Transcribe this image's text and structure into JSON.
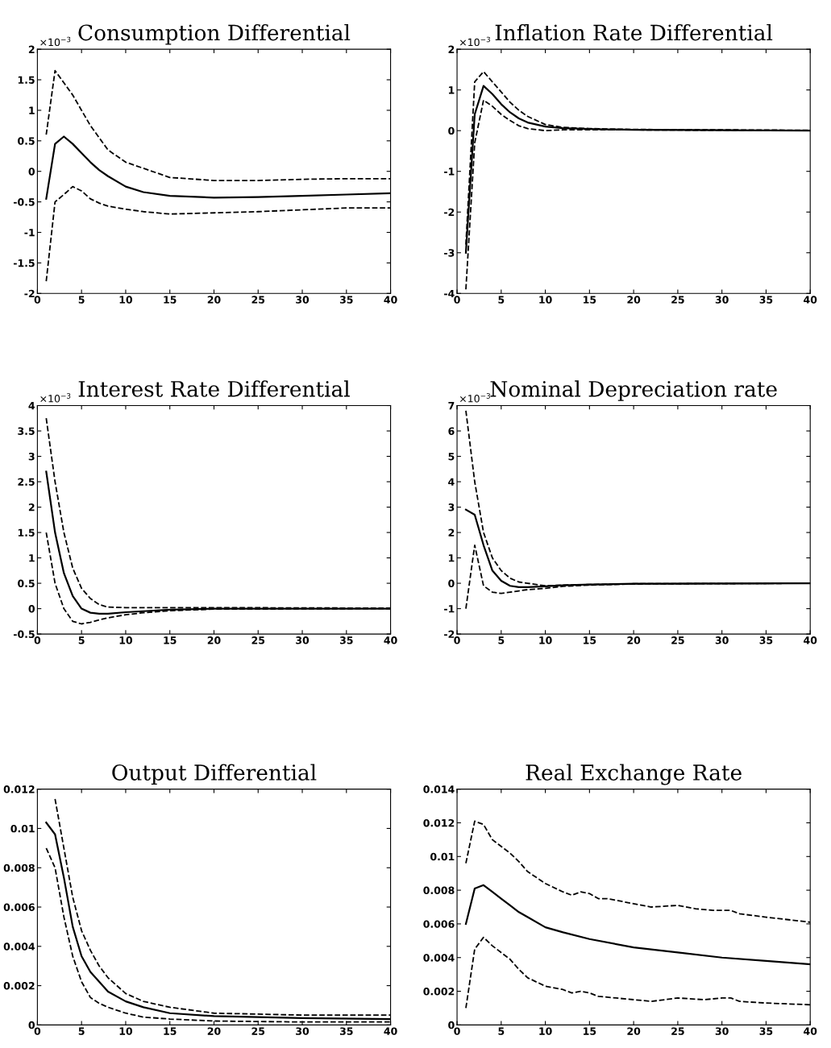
{
  "chart_data": [
    {
      "type": "line",
      "title": "Consumption Differential",
      "annotations": [
        "×10$^{−3}$"
      ],
      "xlim": [
        0,
        40
      ],
      "xticks": [
        0,
        5,
        10,
        15,
        20,
        25,
        30,
        35,
        40
      ],
      "ylim": [
        -2,
        2
      ],
      "yticks": [
        -2,
        -1.5,
        -1,
        -0.5,
        0,
        0.5,
        1,
        1.5,
        2
      ],
      "series": [
        {
          "x": [
            1,
            2,
            3,
            4,
            5,
            6,
            7,
            8,
            10,
            12,
            15,
            20,
            25,
            30,
            35,
            40
          ],
          "values": [
            -0.45,
            0.45,
            0.57,
            0.45,
            0.3,
            0.15,
            0.02,
            -0.08,
            -0.25,
            -0.34,
            -0.4,
            -0.43,
            -0.42,
            -0.4,
            -0.38,
            -0.36
          ],
          "color": "#000000",
          "line_style": "solid"
        },
        {
          "x": [
            1,
            2,
            3,
            4,
            5,
            6,
            7,
            8,
            10,
            12,
            15,
            20,
            25,
            30,
            35,
            40
          ],
          "values": [
            0.6,
            1.65,
            1.45,
            1.25,
            1.0,
            0.75,
            0.55,
            0.35,
            0.15,
            0.05,
            -0.1,
            -0.15,
            -0.15,
            -0.13,
            -0.12,
            -0.12
          ],
          "color": "#000000",
          "line_style": "dashed"
        },
        {
          "x": [
            1,
            2,
            3,
            4,
            5,
            6,
            7,
            8,
            10,
            12,
            15,
            20,
            25,
            30,
            35,
            40
          ],
          "values": [
            -1.8,
            -0.5,
            -0.38,
            -0.25,
            -0.32,
            -0.45,
            -0.52,
            -0.57,
            -0.62,
            -0.66,
            -0.7,
            -0.68,
            -0.66,
            -0.63,
            -0.6,
            -0.6
          ],
          "color": "#000000",
          "line_style": "dashed"
        }
      ]
    },
    {
      "type": "line",
      "title": "Inflation Rate Differential",
      "annotations": [
        "×10$^{−3}$"
      ],
      "xlim": [
        0,
        40
      ],
      "xticks": [
        0,
        5,
        10,
        15,
        20,
        25,
        30,
        35,
        40
      ],
      "ylim": [
        -4,
        2
      ],
      "yticks": [
        -4,
        -3,
        -2,
        -1,
        0,
        1,
        2
      ],
      "series": [
        {
          "x": [
            1,
            2,
            3,
            4,
            5,
            6,
            7,
            8,
            10,
            12,
            15,
            20,
            30,
            40
          ],
          "values": [
            -3.0,
            0.4,
            1.1,
            0.9,
            0.65,
            0.45,
            0.3,
            0.2,
            0.1,
            0.06,
            0.04,
            0.02,
            0.01,
            0.0
          ],
          "color": "#000000",
          "line_style": "solid"
        },
        {
          "x": [
            1,
            2,
            3,
            4,
            5,
            6,
            7,
            8,
            10,
            12,
            15,
            20,
            30,
            40
          ],
          "values": [
            -2.8,
            1.2,
            1.45,
            1.2,
            0.95,
            0.7,
            0.5,
            0.35,
            0.15,
            0.08,
            0.05,
            0.03,
            0.02,
            0.01
          ],
          "color": "#000000",
          "line_style": "dashed"
        },
        {
          "x": [
            1,
            2,
            3,
            4,
            5,
            6,
            7,
            8,
            10,
            12,
            15,
            20,
            30,
            40
          ],
          "values": [
            -3.9,
            -0.3,
            0.75,
            0.6,
            0.4,
            0.25,
            0.12,
            0.05,
            0.0,
            0.02,
            0.02,
            0.02,
            0.01,
            0.0
          ],
          "color": "#000000",
          "line_style": "dashed"
        }
      ]
    },
    {
      "type": "line",
      "title": "Interest Rate Differential",
      "annotations": [
        "×10$^{−3}$"
      ],
      "xlim": [
        0,
        40
      ],
      "xticks": [
        0,
        5,
        10,
        15,
        20,
        25,
        30,
        35,
        40
      ],
      "ylim": [
        -0.5,
        4
      ],
      "yticks": [
        -0.5,
        0,
        0.5,
        1,
        1.5,
        2,
        2.5,
        3,
        3.5,
        4
      ],
      "series": [
        {
          "x": [
            1,
            2,
            3,
            4,
            5,
            6,
            7,
            8,
            10,
            12,
            15,
            20,
            40
          ],
          "values": [
            2.7,
            1.5,
            0.7,
            0.25,
            0.0,
            -0.08,
            -0.1,
            -0.1,
            -0.07,
            -0.05,
            -0.02,
            0.0,
            0.0
          ],
          "color": "#000000",
          "line_style": "solid"
        },
        {
          "x": [
            1,
            2,
            3,
            4,
            5,
            6,
            7,
            8,
            10,
            15,
            20,
            40
          ],
          "values": [
            3.75,
            2.5,
            1.5,
            0.8,
            0.4,
            0.2,
            0.08,
            0.03,
            0.02,
            0.02,
            0.02,
            0.01
          ],
          "color": "#000000",
          "line_style": "dashed"
        },
        {
          "x": [
            1,
            2,
            3,
            4,
            5,
            6,
            7,
            8,
            10,
            12,
            15,
            20,
            40
          ],
          "values": [
            1.5,
            0.5,
            0.0,
            -0.25,
            -0.3,
            -0.27,
            -0.22,
            -0.18,
            -0.12,
            -0.08,
            -0.04,
            -0.01,
            0.0
          ],
          "color": "#000000",
          "line_style": "dashed"
        }
      ]
    },
    {
      "type": "line",
      "title": "Nominal Depreciation rate",
      "annotations": [
        "×10$^{−3}$"
      ],
      "xlim": [
        0,
        40
      ],
      "xticks": [
        0,
        5,
        10,
        15,
        20,
        25,
        30,
        35,
        40
      ],
      "ylim": [
        -2,
        7
      ],
      "yticks": [
        -2,
        -1,
        0,
        1,
        2,
        3,
        4,
        5,
        6,
        7
      ],
      "series": [
        {
          "x": [
            1,
            2,
            3,
            4,
            5,
            6,
            7,
            8,
            10,
            12,
            15,
            20,
            40
          ],
          "values": [
            2.9,
            2.7,
            1.5,
            0.5,
            0.1,
            -0.1,
            -0.15,
            -0.15,
            -0.12,
            -0.08,
            -0.05,
            -0.02,
            0.0
          ],
          "color": "#000000",
          "line_style": "solid"
        },
        {
          "x": [
            1,
            2,
            3,
            4,
            5,
            6,
            7,
            8,
            10,
            12,
            15,
            20,
            40
          ],
          "values": [
            6.8,
            4.0,
            2.0,
            1.0,
            0.5,
            0.2,
            0.05,
            0.0,
            -0.1,
            -0.07,
            -0.05,
            -0.02,
            0.0
          ],
          "color": "#000000",
          "line_style": "dashed"
        },
        {
          "x": [
            1,
            2,
            3,
            4,
            5,
            6,
            7,
            8,
            10,
            12,
            15,
            20,
            40
          ],
          "values": [
            -1.0,
            1.5,
            -0.1,
            -0.35,
            -0.4,
            -0.35,
            -0.3,
            -0.25,
            -0.2,
            -0.12,
            -0.07,
            -0.03,
            0.0
          ],
          "color": "#000000",
          "line_style": "dashed"
        }
      ]
    },
    {
      "type": "line",
      "title": "Output Differential",
      "xlim": [
        0,
        40
      ],
      "xticks": [
        0,
        5,
        10,
        15,
        20,
        25,
        30,
        35,
        40
      ],
      "ylim": [
        0,
        0.012
      ],
      "yticks": [
        0,
        0.002,
        0.004,
        0.006,
        0.008,
        0.01,
        0.012
      ],
      "series": [
        {
          "x": [
            1,
            2,
            3,
            4,
            5,
            6,
            7,
            8,
            10,
            12,
            15,
            20,
            25,
            30,
            40
          ],
          "values": [
            0.0103,
            0.0097,
            0.0075,
            0.005,
            0.0035,
            0.0027,
            0.0022,
            0.0017,
            0.0012,
            0.0009,
            0.0006,
            0.00045,
            0.0004,
            0.00035,
            0.0003
          ],
          "color": "#000000",
          "line_style": "solid"
        },
        {
          "x": [
            2,
            3,
            4,
            5,
            6,
            7,
            8,
            10,
            12,
            15,
            20,
            30,
            40
          ],
          "values": [
            0.0115,
            0.009,
            0.0065,
            0.0048,
            0.0038,
            0.003,
            0.0024,
            0.0016,
            0.0012,
            0.0009,
            0.0006,
            0.0005,
            0.0005
          ],
          "color": "#000000",
          "line_style": "dashed"
        },
        {
          "x": [
            1,
            2,
            3,
            4,
            5,
            6,
            7,
            8,
            10,
            12,
            15,
            20,
            30,
            40
          ],
          "values": [
            0.009,
            0.008,
            0.0055,
            0.0035,
            0.0022,
            0.0014,
            0.0011,
            0.0009,
            0.0006,
            0.0004,
            0.0003,
            0.0002,
            0.00015,
            0.00015
          ],
          "color": "#000000",
          "line_style": "dashed"
        }
      ]
    },
    {
      "type": "line",
      "title": "Real Exchange Rate",
      "xlim": [
        0,
        40
      ],
      "xticks": [
        0,
        5,
        10,
        15,
        20,
        25,
        30,
        35,
        40
      ],
      "ylim": [
        0,
        0.014
      ],
      "yticks": [
        0,
        0.002,
        0.004,
        0.006,
        0.008,
        0.01,
        0.012,
        0.014
      ],
      "series": [
        {
          "x": [
            1,
            2,
            3,
            4,
            5,
            6,
            7,
            8,
            10,
            12,
            15,
            20,
            25,
            30,
            35,
            40
          ],
          "values": [
            0.006,
            0.0081,
            0.0083,
            0.0079,
            0.0075,
            0.0071,
            0.0067,
            0.0064,
            0.0058,
            0.0055,
            0.0051,
            0.0046,
            0.0043,
            0.004,
            0.0038,
            0.0036
          ],
          "color": "#000000",
          "line_style": "solid"
        },
        {
          "x": [
            1,
            2,
            3,
            4,
            5,
            6,
            7,
            8,
            10,
            12,
            13,
            14,
            15,
            16,
            17,
            20,
            22,
            25,
            27,
            29,
            31,
            32,
            35,
            40
          ],
          "values": [
            0.0096,
            0.0121,
            0.0119,
            0.011,
            0.0106,
            0.0102,
            0.0097,
            0.0091,
            0.0084,
            0.0079,
            0.0077,
            0.0079,
            0.0078,
            0.0075,
            0.0075,
            0.0072,
            0.007,
            0.0071,
            0.0069,
            0.0068,
            0.0068,
            0.0066,
            0.0064,
            0.0061
          ],
          "color": "#000000",
          "line_style": "dashed"
        },
        {
          "x": [
            1,
            2,
            3,
            4,
            5,
            6,
            7,
            8,
            10,
            12,
            13,
            14,
            15,
            16,
            18,
            20,
            22,
            25,
            28,
            30,
            31,
            32,
            35,
            40
          ],
          "values": [
            0.001,
            0.0045,
            0.0052,
            0.0047,
            0.0043,
            0.0039,
            0.0033,
            0.0028,
            0.0023,
            0.0021,
            0.0019,
            0.002,
            0.0019,
            0.0017,
            0.0016,
            0.0015,
            0.0014,
            0.0016,
            0.0015,
            0.0016,
            0.0016,
            0.0014,
            0.0013,
            0.0012
          ],
          "color": "#000000",
          "line_style": "dashed"
        }
      ]
    }
  ]
}
